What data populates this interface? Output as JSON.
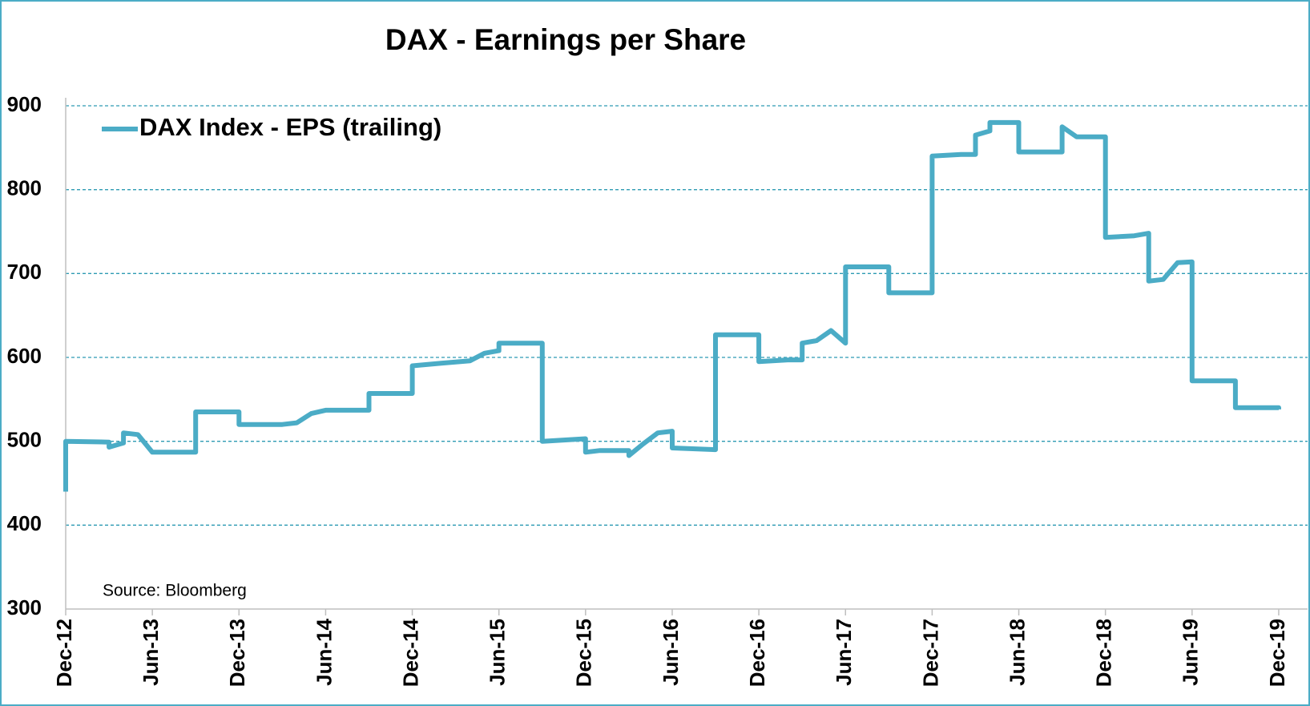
{
  "chart_data": {
    "type": "line",
    "title": "DAX - Earnings per Share",
    "source": "Source: Bloomberg",
    "x": [
      "2012-12",
      "2012-12",
      "2013-03",
      "2013-03",
      "2013-04",
      "2013-04",
      "2013-05",
      "2013-06",
      "2013-09",
      "2013-09",
      "2013-12",
      "2013-12",
      "2014-03",
      "2014-04",
      "2014-05",
      "2014-06",
      "2014-09",
      "2014-09",
      "2014-12",
      "2014-12",
      "2015-02",
      "2015-04",
      "2015-05",
      "2015-06",
      "2015-06",
      "2015-09",
      "2015-09",
      "2015-12",
      "2015-12",
      "2016-01",
      "2016-03",
      "2016-03",
      "2016-04",
      "2016-05",
      "2016-06",
      "2016-06",
      "2016-09",
      "2016-09",
      "2016-12",
      "2016-12",
      "2017-02",
      "2017-03",
      "2017-03",
      "2017-04",
      "2017-05",
      "2017-06",
      "2017-06",
      "2017-09",
      "2017-09",
      "2017-12",
      "2017-12",
      "2018-02",
      "2018-03",
      "2018-03",
      "2018-04",
      "2018-04",
      "2018-06",
      "2018-06",
      "2018-09",
      "2018-09",
      "2018-10",
      "2018-12",
      "2018-12",
      "2019-02",
      "2019-03",
      "2019-03",
      "2019-04",
      "2019-05",
      "2019-06",
      "2019-06",
      "2019-09",
      "2019-09",
      "2019-12",
      "2019-12"
    ],
    "series": [
      {
        "name": "DAX Index - EPS (trailing)",
        "color": "#4bacc6",
        "values": [
          440,
          500,
          499,
          493,
          498,
          510,
          508,
          487,
          487,
          535,
          535,
          520,
          520,
          522,
          533,
          537,
          537,
          557,
          557,
          590,
          593,
          596,
          605,
          608,
          617,
          617,
          500,
          503,
          487,
          489,
          489,
          483,
          497,
          510,
          512,
          492,
          490,
          627,
          627,
          595,
          597,
          597,
          617,
          620,
          632,
          617,
          708,
          708,
          677,
          677,
          840,
          842,
          842,
          865,
          870,
          880,
          880,
          845,
          845,
          875,
          863,
          863,
          743,
          745,
          748,
          691,
          693,
          713,
          714,
          572,
          572,
          540,
          540,
          538
        ]
      }
    ],
    "xlim": [
      "2012-12",
      "2020-02"
    ],
    "xticks": [
      {
        "value": "2012-12",
        "label": "Dec-12"
      },
      {
        "value": "2013-06",
        "label": "Jun-13"
      },
      {
        "value": "2013-12",
        "label": "Dec-13"
      },
      {
        "value": "2014-06",
        "label": "Jun-14"
      },
      {
        "value": "2014-12",
        "label": "Dec-14"
      },
      {
        "value": "2015-06",
        "label": "Jun-15"
      },
      {
        "value": "2015-12",
        "label": "Dec-15"
      },
      {
        "value": "2016-06",
        "label": "Jun-16"
      },
      {
        "value": "2016-12",
        "label": "Dec-16"
      },
      {
        "value": "2017-06",
        "label": "Jun-17"
      },
      {
        "value": "2017-12",
        "label": "Dec-17"
      },
      {
        "value": "2018-06",
        "label": "Jun-18"
      },
      {
        "value": "2018-12",
        "label": "Dec-18"
      },
      {
        "value": "2019-06",
        "label": "Jun-19"
      },
      {
        "value": "2019-12",
        "label": "Dec-19"
      }
    ],
    "ylim": [
      300,
      900
    ],
    "yticks": [
      300,
      400,
      500,
      600,
      700,
      800,
      900
    ],
    "grid": true,
    "grid_color": "#2e9bb3"
  }
}
